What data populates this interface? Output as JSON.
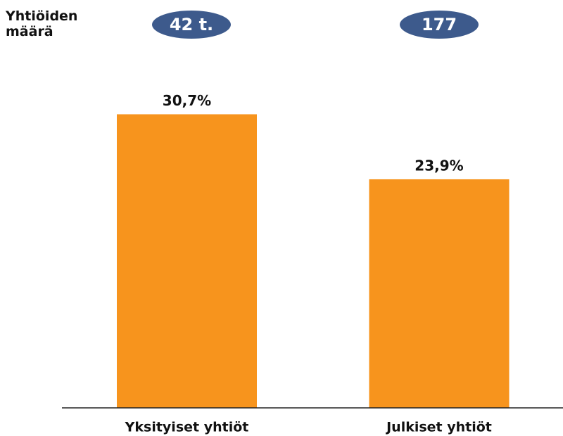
{
  "chart_data": {
    "type": "bar",
    "count_title": "Yhtiöiden määrä",
    "count_labels": [
      "42 t.",
      "177"
    ],
    "categories": [
      "Yksityiset yhtiöt",
      "Julkiset yhtiöt"
    ],
    "values": [
      30.7,
      23.9
    ],
    "value_labels": [
      "30,7%",
      "23,9%"
    ],
    "color": "#f7941d",
    "badge_color": "#3d5a8c",
    "ylim": [
      0,
      40
    ]
  }
}
